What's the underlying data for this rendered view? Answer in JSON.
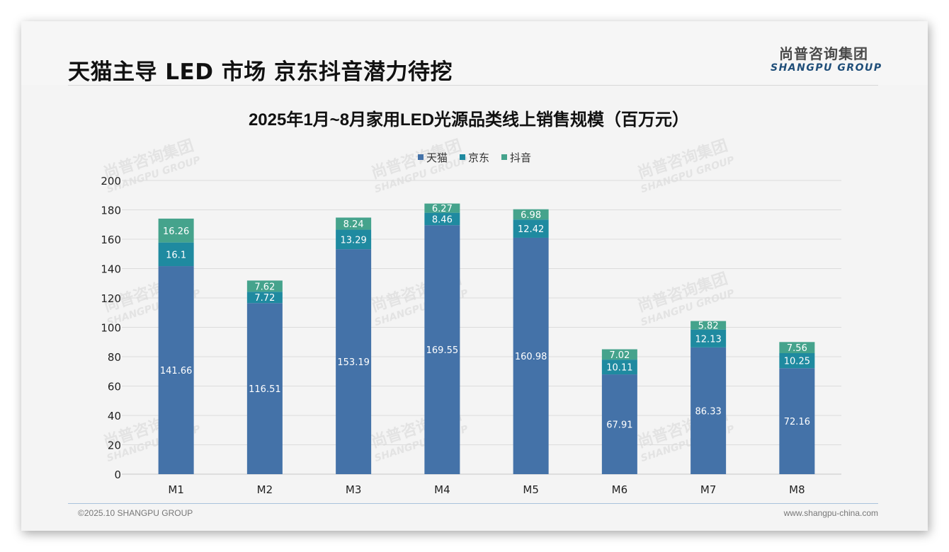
{
  "header": {
    "title": "天猫主导 LED 市场 京东抖音潜力待挖",
    "logo_cn": "尚普咨询集团",
    "logo_en": "SHANGPU GROUP"
  },
  "footer": {
    "copyright": "©2025.10 SHANGPU GROUP",
    "website": "www.shangpu-china.com"
  },
  "watermark": {
    "cn": "尚普咨询集团",
    "en": "SHANGPU GROUP"
  },
  "colors": {
    "tmall": "#4472a8",
    "jd": "#1f8aa0",
    "douyin": "#45a38c"
  },
  "chart_data": {
    "type": "bar",
    "stacked": true,
    "title": "2025年1月~8月家用LED光源品类线上销售规模（百万元）",
    "xlabel": "",
    "ylabel": "",
    "ylim": [
      0,
      200
    ],
    "yticks": [
      "0",
      "20",
      "40",
      "60",
      "80",
      "100",
      "120",
      "140",
      "160",
      "180",
      "200"
    ],
    "grid": true,
    "legend_position": "top-center",
    "categories": [
      "M1",
      "M2",
      "M3",
      "M4",
      "M5",
      "M6",
      "M7",
      "M8"
    ],
    "series": [
      {
        "name": "天猫",
        "color": "#4472a8",
        "values": [
          141.66,
          116.51,
          153.19,
          169.55,
          160.98,
          67.91,
          86.33,
          72.16
        ],
        "labels": [
          "141.66",
          "116.51",
          "153.19",
          "169.55",
          "160.98",
          "67.91",
          "86.33",
          "72.16"
        ]
      },
      {
        "name": "京东",
        "color": "#1f8aa0",
        "values": [
          16.1,
          7.72,
          13.29,
          8.46,
          12.42,
          10.11,
          12.13,
          10.25
        ],
        "labels": [
          "16.1",
          "7.72",
          "13.29",
          "8.46",
          "12.42",
          "10.11",
          "12.13",
          "10.25"
        ]
      },
      {
        "name": "抖音",
        "color": "#45a38c",
        "values": [
          16.26,
          7.62,
          8.24,
          6.27,
          6.98,
          7.02,
          5.82,
          7.56
        ],
        "labels": [
          "16.26",
          "7.62",
          "8.24",
          "6.27",
          "6.98",
          "7.02",
          "5.82",
          "7.56"
        ]
      }
    ]
  }
}
